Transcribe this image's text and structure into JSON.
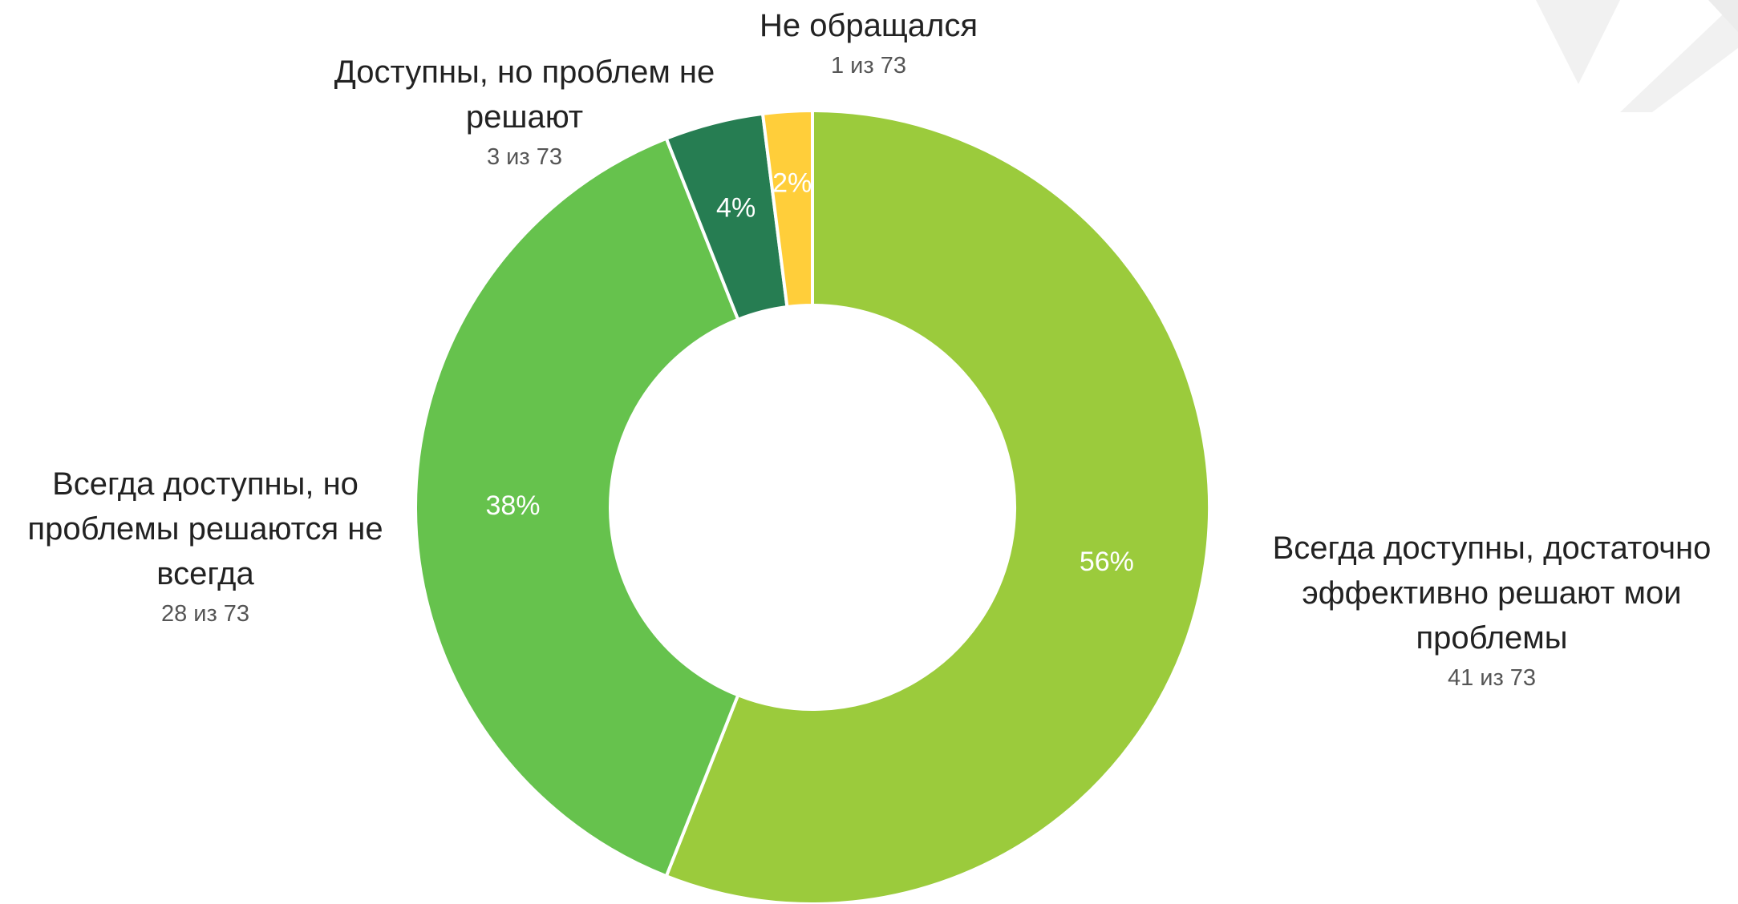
{
  "chart_data": {
    "type": "donut",
    "categories": [
      "Всегда доступны, достаточно эффективно решают мои проблемы",
      "Всегда доступны, но проблемы решаются не всегда",
      "Доступны, но проблем не решают",
      "Не обращался"
    ],
    "values": [
      56,
      38,
      4,
      2
    ],
    "value_labels": [
      "56%",
      "38%",
      "4%",
      "2%"
    ],
    "count_labels": [
      "41 из 73",
      "28 из 73",
      "3 из 73",
      "1 из 73"
    ],
    "colors": [
      "#9bcb3c",
      "#66c24d",
      "#267d52",
      "#ffce3a"
    ]
  }
}
